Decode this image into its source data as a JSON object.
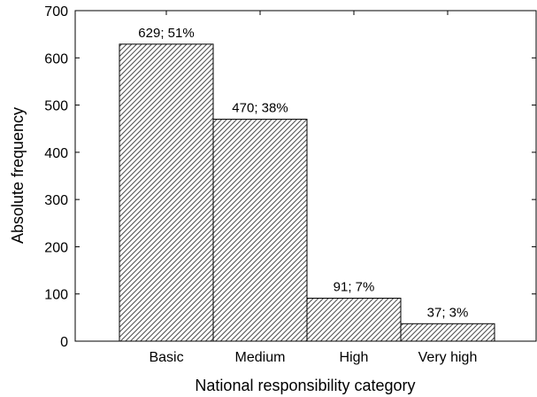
{
  "chart_data": {
    "type": "bar",
    "categories": [
      "Basic",
      "Medium",
      "High",
      "Very high"
    ],
    "values": [
      629,
      470,
      91,
      37
    ],
    "data_labels": [
      "629; 51%",
      "470; 38%",
      "91; 7%",
      "37; 3%"
    ],
    "xlabel": "National responsibility category",
    "ylabel": "Absolute frequency",
    "ylim": [
      0,
      700
    ],
    "yticks": [
      0,
      100,
      200,
      300,
      400,
      500,
      600,
      700
    ],
    "grid": false,
    "legend": "none",
    "bar_fill": "hatched",
    "bar_color": "#555555"
  }
}
